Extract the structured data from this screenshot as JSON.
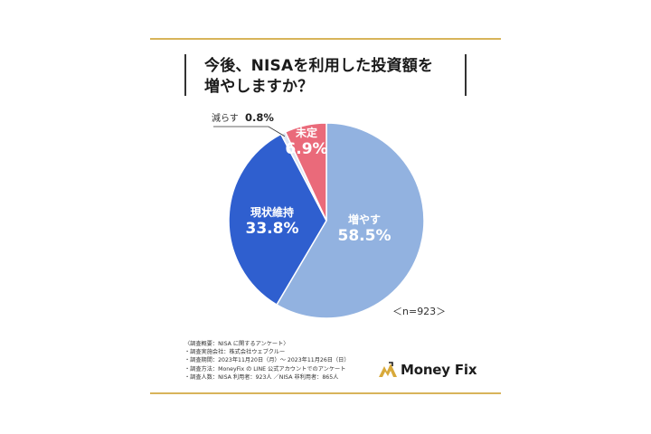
{
  "title_line1": "今後、NISAを利用した投資額を",
  "title_line2": "増やしますか？",
  "n_label": "＜n=923＞",
  "chart_data": {
    "type": "pie",
    "title": "今後、NISAを利用した投資額を増やしますか？",
    "slices": [
      {
        "label": "増やす",
        "value": 58.5,
        "display": "58.5%",
        "color": "#92b2e0"
      },
      {
        "label": "現状維持",
        "value": 33.8,
        "display": "33.8%",
        "color": "#2f5fcf"
      },
      {
        "label": "減らす",
        "value": 0.8,
        "display": "0.8%",
        "color": "#dde6f3"
      },
      {
        "label": "未定",
        "value": 6.9,
        "display": "6.9%",
        "color": "#ea6a7a"
      }
    ],
    "n": 923
  },
  "notes": [
    "〈調査概要：NISA に関するアンケート〉",
    "・調査実施会社：株式会社ウェブクルー",
    "・調査期間：2023年11月20日（月）〜 2023年11月26日（日）",
    "・調査方法：MoneyFix の LINE 公式アカウントでのアンケート",
    "・調査人数：NISA 利用者：923人 ／NISA 非利用者：865人"
  ],
  "logo_text": "Money Fix",
  "colors": {
    "accent_rule": "#d8b45a",
    "logo_gold": "#d8a93a"
  }
}
